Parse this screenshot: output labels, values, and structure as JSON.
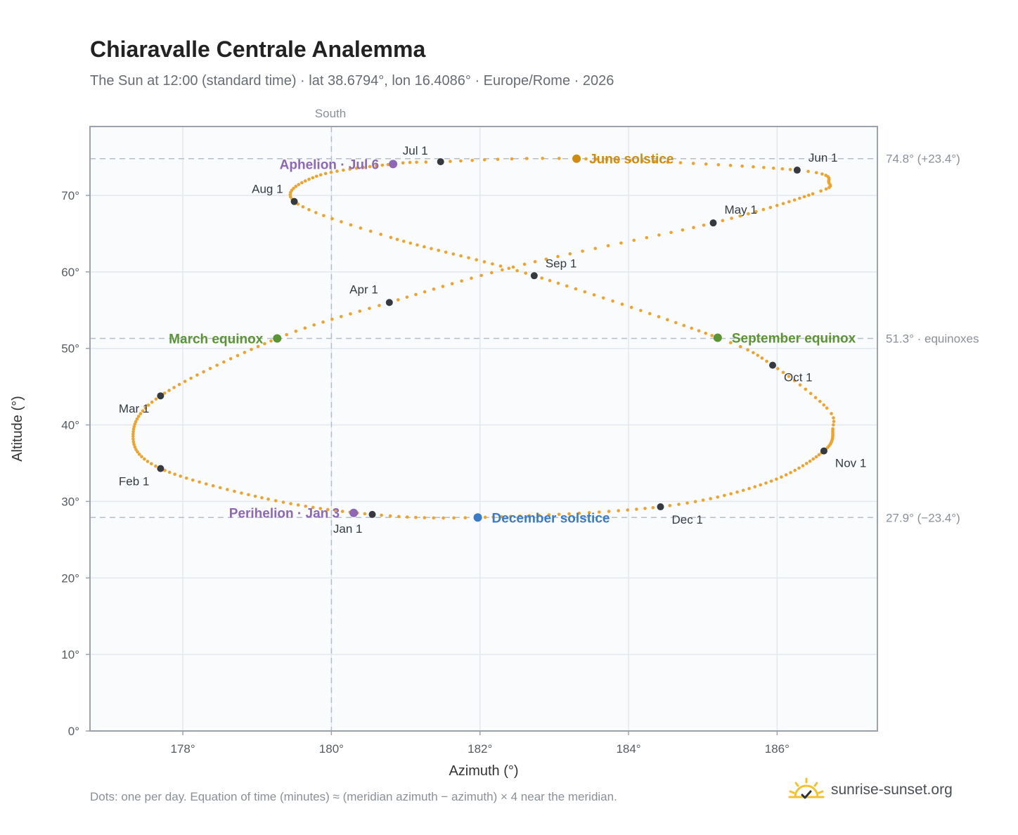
{
  "header": {
    "title": "Chiaravalle Centrale Analemma",
    "subtitle": "The Sun at 12:00 (standard time) · lat 38.6794°, lon 16.4086° · Europe/Rome · 2026"
  },
  "footer": {
    "note": "Dots: one per day. Equation of time (minutes) ≈ (meridian azimuth − azimuth) × 4 near the meridian.",
    "brand": "sunrise-sunset.org",
    "brand_icon": "sun-logo-icon"
  },
  "colors": {
    "path": "#f0a32a",
    "month_dot": "#343a40",
    "june_solstice": "#d08c10",
    "december_solstice": "#3a7bc8",
    "equinox": "#5a9433",
    "apsis": "#8e67b8",
    "plot_bg": "#f9fbfd",
    "grid": "#e3e8ee",
    "frame": "#9aa3ad",
    "ref_line": "#b6bfc9"
  },
  "chart_data": {
    "type": "scatter",
    "title": "Chiaravalle Centrale Analemma",
    "xlabel": "Azimuth (°)",
    "ylabel": "Altitude (°)",
    "xlim": [
      176.75,
      187.35
    ],
    "ylim": [
      0,
      79
    ],
    "xticks": [
      178,
      180,
      182,
      184,
      186
    ],
    "xtick_labels": [
      "178°",
      "180°",
      "182°",
      "184°",
      "186°"
    ],
    "yticks": [
      0,
      10,
      20,
      30,
      40,
      50,
      60,
      70
    ],
    "ytick_labels": [
      "0°",
      "10°",
      "20°",
      "30°",
      "40°",
      "50°",
      "60°",
      "70°"
    ],
    "grid": true,
    "meridian": {
      "azimuth": 180,
      "label": "South"
    },
    "reference_lines": [
      {
        "altitude": 74.8,
        "label": "74.8° (+23.4°)"
      },
      {
        "altitude": 51.3,
        "label": "51.3° · equinoxes"
      },
      {
        "altitude": 27.9,
        "label": "27.9° (−23.4°)"
      }
    ],
    "series": [
      {
        "name": "daily",
        "points_per_day": 1,
        "days": 365
      }
    ],
    "month_markers": [
      {
        "label": "Jan 1",
        "az": 180.55,
        "alt": 28.3
      },
      {
        "label": "Feb 1",
        "az": 177.7,
        "alt": 34.3
      },
      {
        "label": "Mar 1",
        "az": 177.7,
        "alt": 43.8
      },
      {
        "label": "Apr 1",
        "az": 180.78,
        "alt": 56.0
      },
      {
        "label": "May 1",
        "az": 185.14,
        "alt": 66.4
      },
      {
        "label": "Jun 1",
        "az": 186.27,
        "alt": 73.3
      },
      {
        "label": "Jul 1",
        "az": 181.47,
        "alt": 74.4
      },
      {
        "label": "Aug 1",
        "az": 179.5,
        "alt": 69.2
      },
      {
        "label": "Sep 1",
        "az": 182.73,
        "alt": 59.5
      },
      {
        "label": "Oct 1",
        "az": 185.94,
        "alt": 47.8
      },
      {
        "label": "Nov 1",
        "az": 186.63,
        "alt": 36.6
      },
      {
        "label": "Dec 1",
        "az": 184.43,
        "alt": 29.3
      }
    ],
    "events": [
      {
        "label": "June solstice",
        "az": 183.3,
        "alt": 74.8,
        "kind": "june"
      },
      {
        "label": "December solstice",
        "az": 181.97,
        "alt": 27.9,
        "kind": "december"
      },
      {
        "label": "March equinox",
        "az": 179.27,
        "alt": 51.3,
        "kind": "equinox"
      },
      {
        "label": "September equinox",
        "az": 185.2,
        "alt": 51.4,
        "kind": "equinox"
      },
      {
        "label": "Aphelion · Jul 6",
        "az": 180.83,
        "alt": 74.1,
        "kind": "apsis"
      },
      {
        "label": "Perihelion · Jan 3",
        "az": 180.3,
        "alt": 28.5,
        "kind": "apsis"
      }
    ],
    "path_keypoints": [
      [
        1,
        180.55,
        28.3
      ],
      [
        15,
        179.15,
        30.3
      ],
      [
        32,
        177.7,
        34.3
      ],
      [
        45,
        177.33,
        38.5
      ],
      [
        60,
        177.7,
        43.8
      ],
      [
        79,
        179.27,
        51.3
      ],
      [
        91,
        180.78,
        56.0
      ],
      [
        105,
        182.6,
        61.0
      ],
      [
        121,
        185.14,
        66.4
      ],
      [
        136,
        186.48,
        70.2
      ],
      [
        142,
        186.7,
        71.6
      ],
      [
        152,
        186.27,
        73.3
      ],
      [
        172,
        183.3,
        74.8
      ],
      [
        182,
        181.47,
        74.4
      ],
      [
        187,
        180.83,
        74.1
      ],
      [
        200,
        179.8,
        72.5
      ],
      [
        213,
        179.5,
        69.2
      ],
      [
        225,
        180.8,
        64.5
      ],
      [
        244,
        182.73,
        59.5
      ],
      [
        266,
        185.2,
        51.4
      ],
      [
        274,
        185.94,
        47.8
      ],
      [
        285,
        186.67,
        42.2
      ],
      [
        290,
        186.75,
        39.5
      ],
      [
        305,
        186.63,
        36.6
      ],
      [
        320,
        185.85,
        32.4
      ],
      [
        335,
        184.43,
        29.3
      ],
      [
        355,
        181.97,
        27.9
      ],
      [
        366,
        180.55,
        28.3
      ]
    ]
  }
}
